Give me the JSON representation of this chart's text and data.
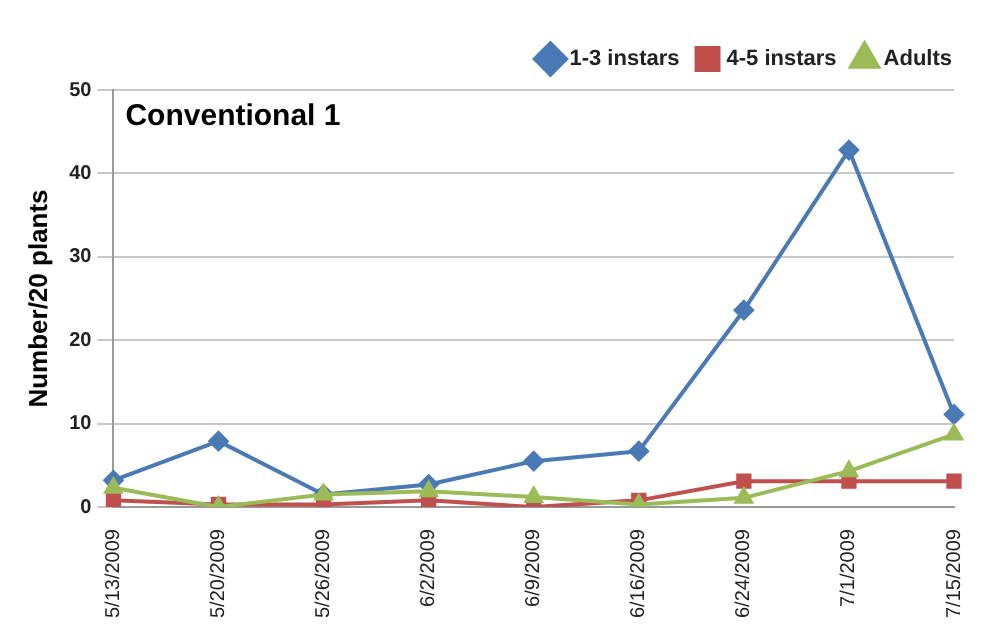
{
  "chart_data": {
    "type": "line",
    "title": "Conventional 1",
    "ylabel": "Number/20 plants",
    "categories": [
      "5/13/2009",
      "5/20/2009",
      "5/26/2009",
      "6/2/2009",
      "6/9/2009",
      "6/16/2009",
      "6/24/2009",
      "7/1/2009",
      "7/15/2009"
    ],
    "series": [
      {
        "name": "1-3 instars",
        "color": "#4a7ab5",
        "marker": "diamond",
        "values": [
          3.2,
          7.9,
          1.5,
          2.7,
          5.5,
          6.7,
          23.6,
          42.8,
          11.1
        ]
      },
      {
        "name": "4-5 instars",
        "color": "#c0504d",
        "marker": "square",
        "values": [
          0.8,
          0.3,
          0.3,
          0.8,
          0,
          0.8,
          3.1,
          3.1,
          3.1
        ]
      },
      {
        "name": "Adults",
        "color": "#9bbb59",
        "marker": "triangle",
        "values": [
          2.3,
          0,
          1.5,
          1.9,
          1.2,
          0.3,
          1.1,
          4.3,
          8.7
        ]
      }
    ],
    "ylim": [
      0,
      50
    ],
    "yticks": [
      0,
      10,
      20,
      30,
      40,
      50
    ],
    "grid": "y",
    "legend": "top right",
    "line_style": "solid"
  }
}
